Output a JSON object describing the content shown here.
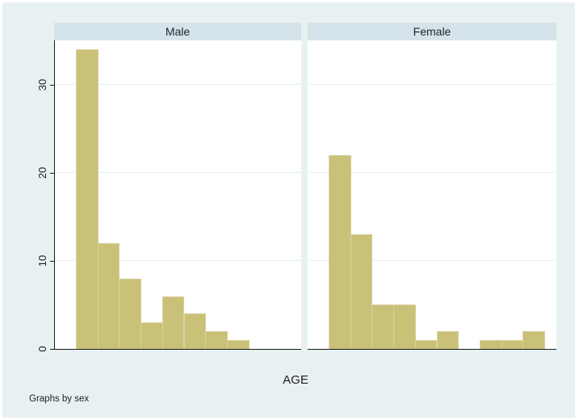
{
  "page": {
    "footer_note": "Graphs by sex",
    "background_color": "#e8f1f1",
    "panel_header_color": "#d5e3ea",
    "bar_color": "#c9c178",
    "bar_border_color": "#d8d2a2",
    "grid_color": "#e6eff0",
    "axis_color": "#1a1a1a",
    "text_color": "#1c1c1c"
  },
  "chart_data": {
    "type": "bar",
    "subtype": "faceted-histogram",
    "title": "",
    "xlabel": "AGE",
    "ylabel": "",
    "facet_variable": "sex",
    "xlim": [
      60,
      90
    ],
    "ylim": [
      0,
      35
    ],
    "x_ticks": [
      60,
      70,
      80,
      90
    ],
    "y_ticks": [
      0,
      10,
      20,
      30
    ],
    "bin_width": 3,
    "grid": "horizontal",
    "legend": "none",
    "panels": [
      {
        "label": "Male",
        "bin_starts": [
          60,
          63,
          66,
          69,
          72,
          75,
          78,
          81
        ],
        "counts": [
          34,
          12,
          8,
          3,
          6,
          4,
          2,
          1
        ]
      },
      {
        "label": "Female",
        "bin_starts": [
          60,
          63,
          66,
          69,
          72,
          75,
          78,
          81,
          84,
          87
        ],
        "counts": [
          22,
          13,
          5,
          5,
          1,
          2,
          0,
          1,
          1,
          2
        ]
      }
    ]
  }
}
